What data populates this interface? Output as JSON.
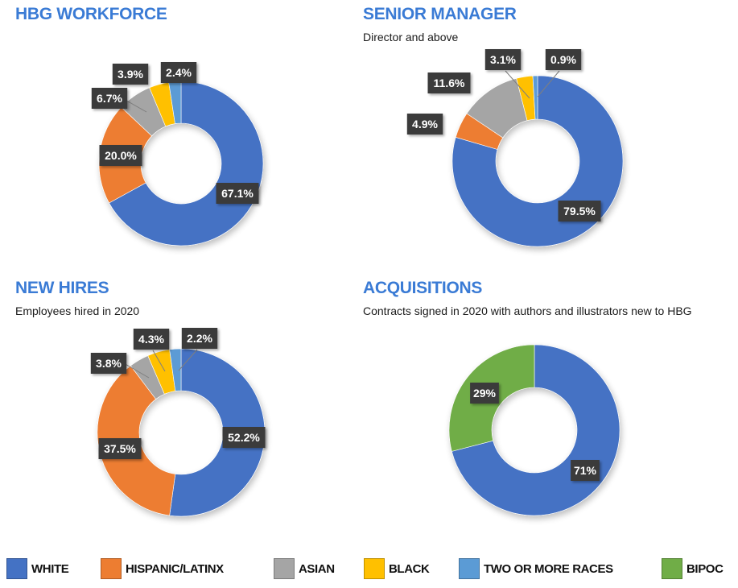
{
  "colors": {
    "title": "#3a7bd5",
    "white": "#4472c4",
    "hispanic": "#ed7d31",
    "asian": "#a5a5a5",
    "black": "#ffc000",
    "two_or_more": "#5b9bd5",
    "bipoc": "#70ad47",
    "label_bg": "#3b3b3b"
  },
  "legend": [
    {
      "key": "white",
      "label": "WHITE"
    },
    {
      "key": "hispanic",
      "label": "HISPANIC/LATINX"
    },
    {
      "key": "asian",
      "label": "ASIAN"
    },
    {
      "key": "black",
      "label": "BLACK"
    },
    {
      "key": "two_or_more",
      "label": "TWO OR MORE RACES"
    },
    {
      "key": "bipoc",
      "label": "BIPOC"
    }
  ],
  "chart_data": [
    {
      "type": "pie",
      "variant": "donut",
      "title": "HBG WORKFORCE",
      "subtitle": "",
      "slices": [
        {
          "key": "white",
          "label": "WHITE",
          "value": 67.1,
          "display": "67.1%"
        },
        {
          "key": "hispanic",
          "label": "HISPANIC/LATINX",
          "value": 20.0,
          "display": "20.0%"
        },
        {
          "key": "asian",
          "label": "ASIAN",
          "value": 6.7,
          "display": "6.7%"
        },
        {
          "key": "black",
          "label": "BLACK",
          "value": 3.9,
          "display": "3.9%"
        },
        {
          "key": "two_or_more",
          "label": "TWO OR MORE RACES",
          "value": 2.4,
          "display": "2.4%"
        }
      ]
    },
    {
      "type": "pie",
      "variant": "donut",
      "title": "SENIOR MANAGER",
      "subtitle": "Director and above",
      "slices": [
        {
          "key": "white",
          "label": "WHITE",
          "value": 79.5,
          "display": "79.5%"
        },
        {
          "key": "hispanic",
          "label": "HISPANIC/LATINX",
          "value": 4.9,
          "display": "4.9%"
        },
        {
          "key": "asian",
          "label": "ASIAN",
          "value": 11.6,
          "display": "11.6%"
        },
        {
          "key": "black",
          "label": "BLACK",
          "value": 3.1,
          "display": "3.1%"
        },
        {
          "key": "two_or_more",
          "label": "TWO OR MORE RACES",
          "value": 0.9,
          "display": "0.9%"
        }
      ]
    },
    {
      "type": "pie",
      "variant": "donut",
      "title": "NEW HIRES",
      "subtitle": "Employees hired in 2020",
      "slices": [
        {
          "key": "white",
          "label": "WHITE",
          "value": 52.2,
          "display": "52.2%"
        },
        {
          "key": "hispanic",
          "label": "HISPANIC/LATINX",
          "value": 37.5,
          "display": "37.5%"
        },
        {
          "key": "asian",
          "label": "ASIAN",
          "value": 3.8,
          "display": "3.8%"
        },
        {
          "key": "black",
          "label": "BLACK",
          "value": 4.3,
          "display": "4.3%"
        },
        {
          "key": "two_or_more",
          "label": "TWO OR MORE RACES",
          "value": 2.2,
          "display": "2.2%"
        }
      ]
    },
    {
      "type": "pie",
      "variant": "donut",
      "title": "ACQUISITIONS",
      "subtitle": "Contracts signed in 2020 with authors and illustrators new to HBG",
      "slices": [
        {
          "key": "white",
          "label": "WHITE",
          "value": 71,
          "display": "71%"
        },
        {
          "key": "bipoc",
          "label": "BIPOC",
          "value": 29,
          "display": "29%"
        }
      ]
    }
  ]
}
